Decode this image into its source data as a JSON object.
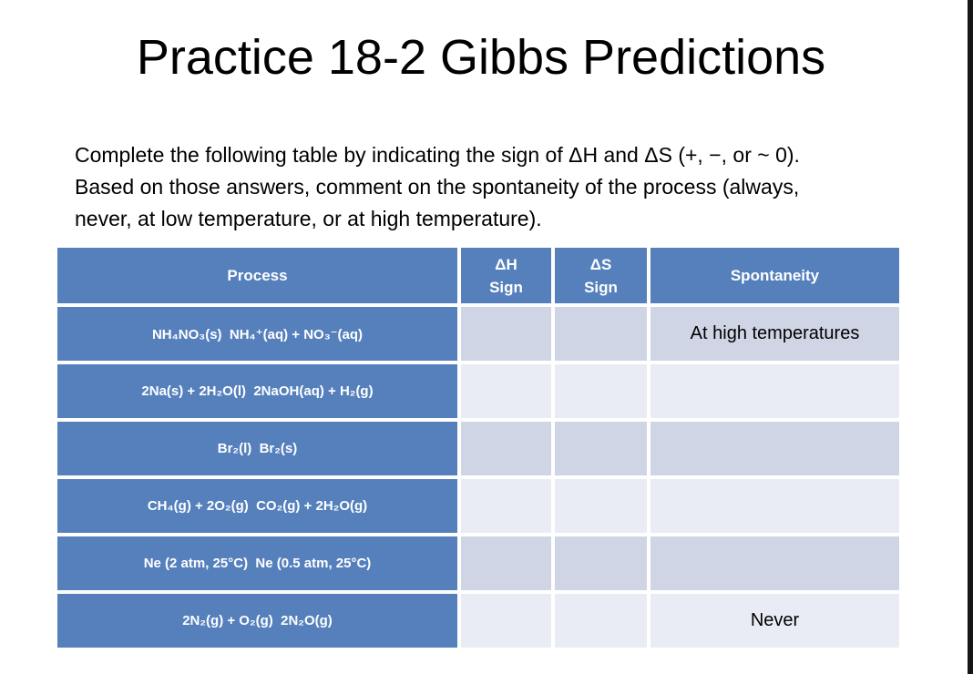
{
  "slide": {
    "title": "Practice 18-2 Gibbs Predictions",
    "instructions": {
      "line1": "Complete the following table by indicating the sign of ΔH and ΔS (+, −, or ~ 0).",
      "line2": "Based on those answers, comment on the spontaneity of the process (always,",
      "line3": "never, at low temperature, or at high temperature)."
    }
  },
  "table": {
    "headers": {
      "process": "Process",
      "dh_line1": "ΔH",
      "dh_line2": "Sign",
      "ds_line1": "ΔS",
      "ds_line2": "Sign",
      "spontaneity": "Spontaneity"
    },
    "rows": [
      {
        "process": "NH₄NO₃(s)  NH₄⁺(aq) + NO₃⁻(aq)",
        "dh_sign": "",
        "ds_sign": "",
        "spontaneity": "At high temperatures"
      },
      {
        "process": "2Na(s) + 2H₂O(l)  2NaOH(aq) + H₂(g)",
        "dh_sign": "",
        "ds_sign": "",
        "spontaneity": ""
      },
      {
        "process": "Br₂(l)  Br₂(s)",
        "dh_sign": "",
        "ds_sign": "",
        "spontaneity": ""
      },
      {
        "process": "CH₄(g) + 2O₂(g)  CO₂(g) + 2H₂O(g)",
        "dh_sign": "",
        "ds_sign": "",
        "spontaneity": ""
      },
      {
        "process": "Ne (2 atm, 25°C)  Ne (0.5 atm, 25°C)",
        "dh_sign": "",
        "ds_sign": "",
        "spontaneity": ""
      },
      {
        "process": "2N₂(g) + O₂(g)  2N₂O(g)",
        "dh_sign": "",
        "ds_sign": "",
        "spontaneity": "Never"
      }
    ],
    "colors": {
      "header_blue": "#5580BC",
      "band_dark": "#D0D5E5",
      "band_light": "#E9ECF4",
      "text_on_blue": "#FFFFFF"
    }
  }
}
